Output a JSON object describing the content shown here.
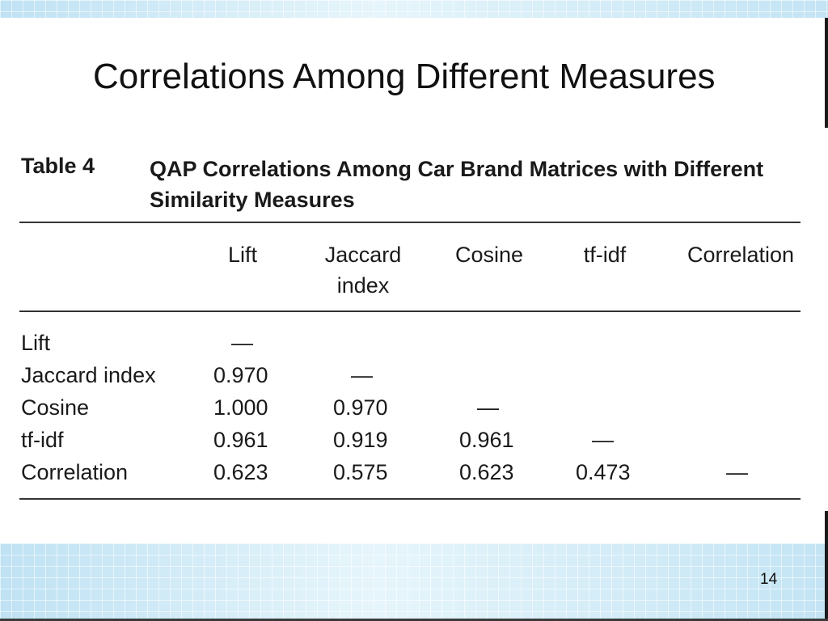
{
  "slide": {
    "title": "Correlations Among Different Measures",
    "page_number": "14"
  },
  "table": {
    "label": "Table 4",
    "caption_line1": "QAP Correlations Among Car Brand Matrices with Different",
    "caption_line2": "Similarity Measures",
    "columns": [
      {
        "line1": "",
        "line2": "Lift"
      },
      {
        "line1": "Jaccard",
        "line2": "index"
      },
      {
        "line1": "",
        "line2": "Cosine"
      },
      {
        "line1": "",
        "line2": "tf-idf"
      },
      {
        "line1": "",
        "line2": "Correlation"
      }
    ],
    "rows": [
      {
        "label": "Lift",
        "cells": [
          "—",
          "",
          "",
          "",
          ""
        ]
      },
      {
        "label": "Jaccard index",
        "cells": [
          "0.970",
          "—",
          "",
          "",
          ""
        ]
      },
      {
        "label": "Cosine",
        "cells": [
          "1.000",
          "0.970",
          "—",
          "",
          ""
        ]
      },
      {
        "label": "tf-idf",
        "cells": [
          "0.961",
          "0.919",
          "0.961",
          "—",
          ""
        ]
      },
      {
        "label": "Correlation",
        "cells": [
          "0.623",
          "0.575",
          "0.623",
          "0.473",
          "—"
        ]
      }
    ]
  }
}
